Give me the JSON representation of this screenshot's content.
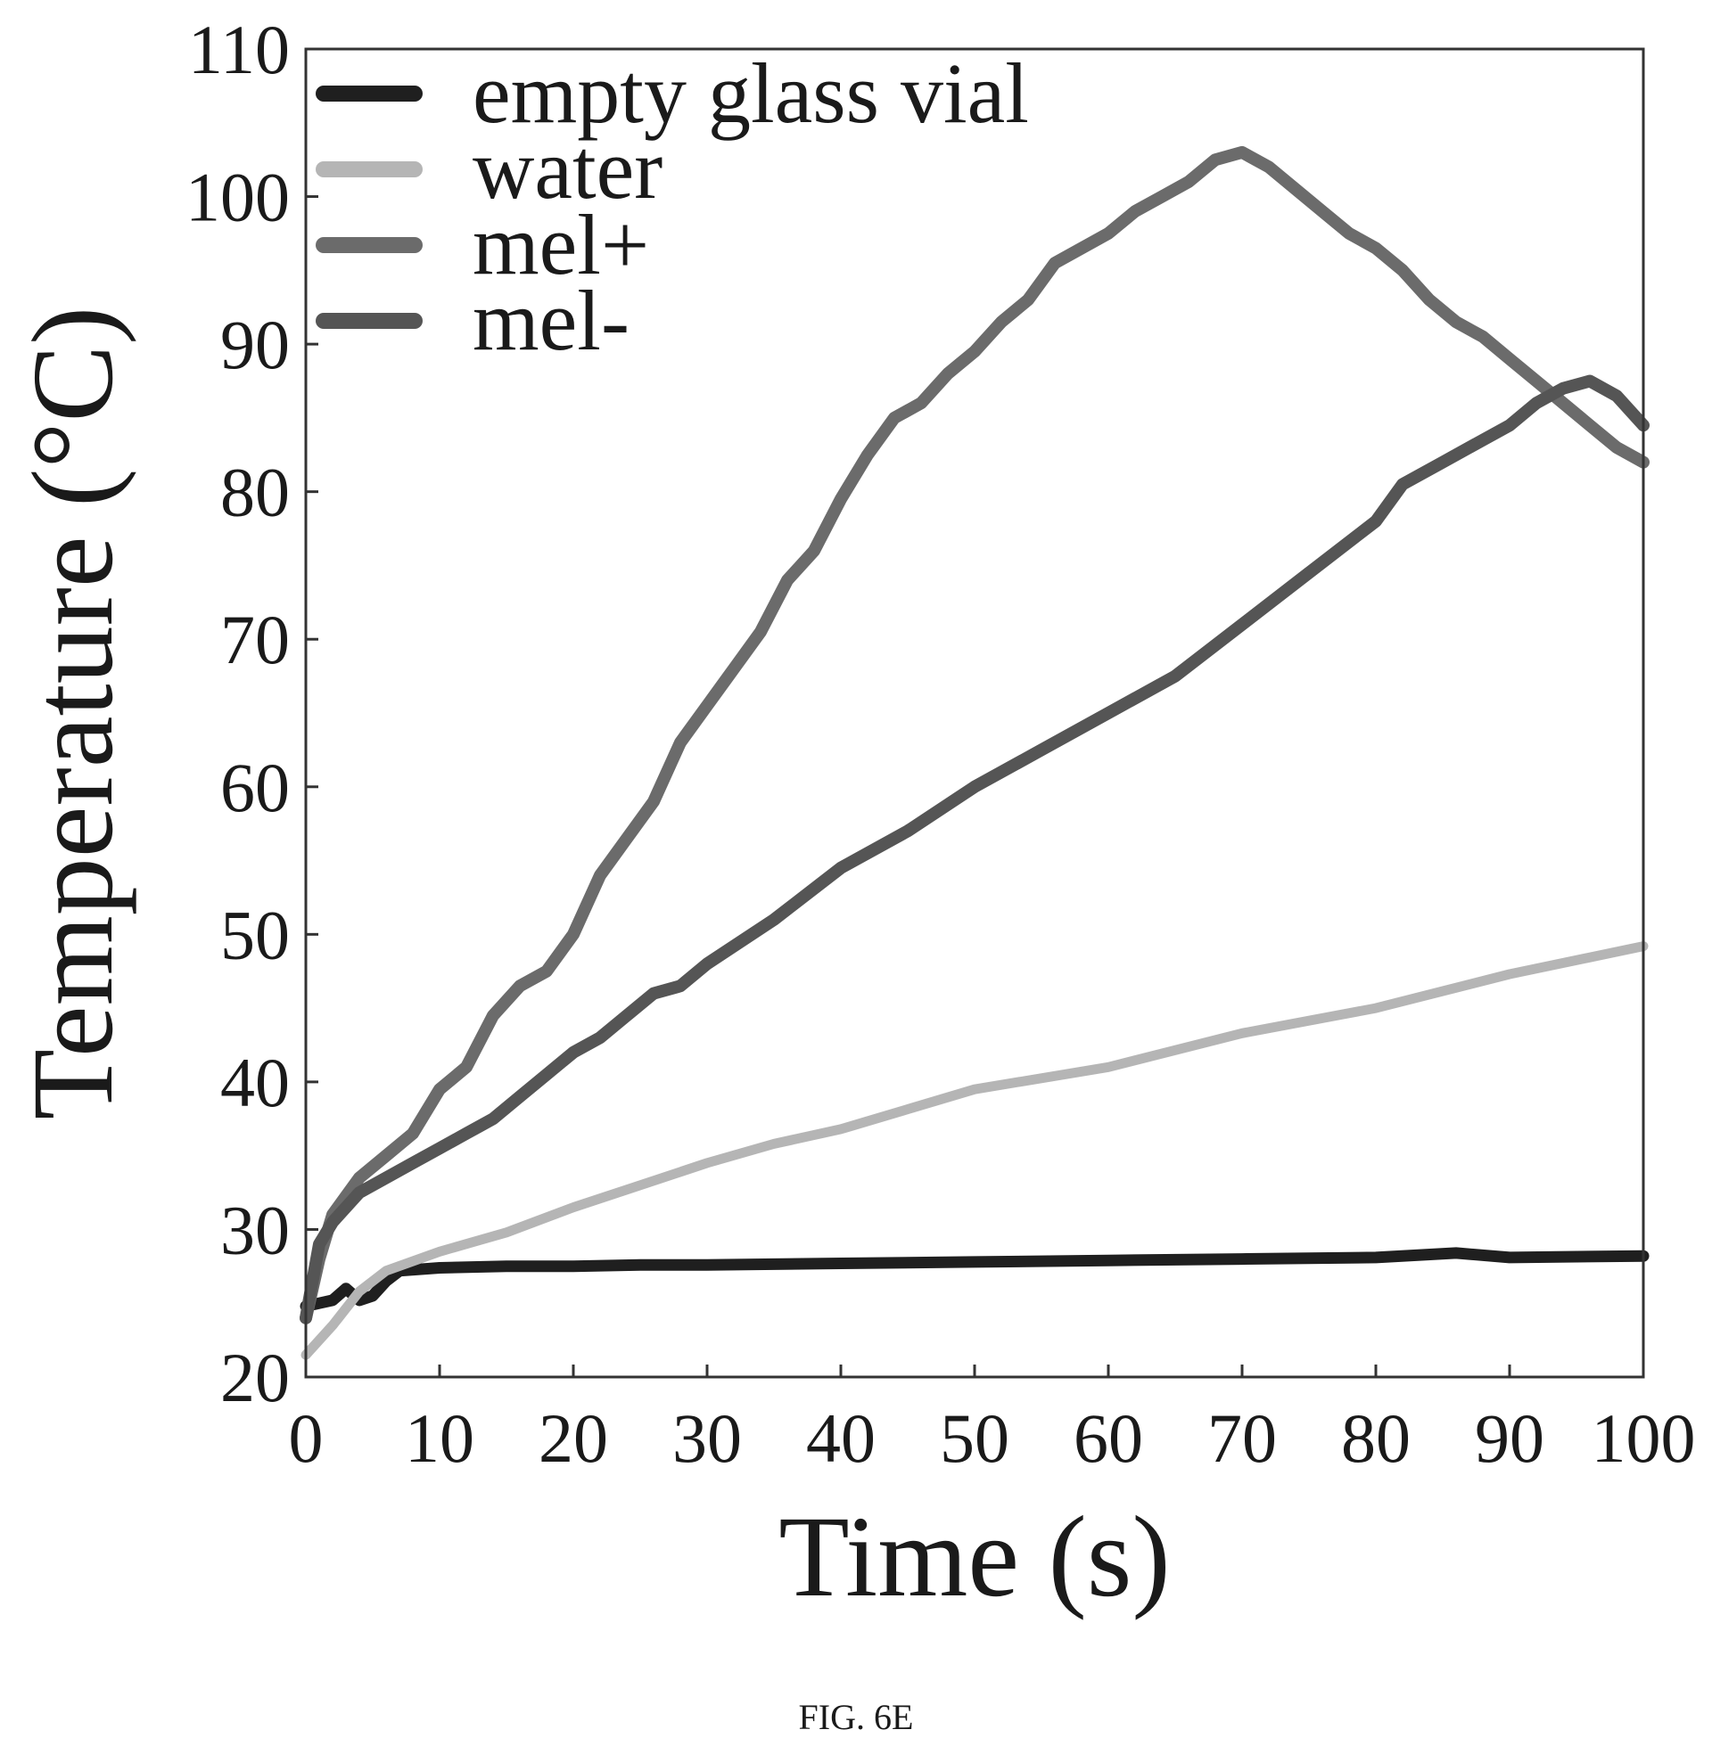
{
  "chart_data": {
    "type": "line",
    "xlabel": "Time (s)",
    "ylabel": "Temperature (°C)",
    "xlim": [
      0,
      100
    ],
    "ylim": [
      20,
      110
    ],
    "xticks": [
      0,
      10,
      20,
      30,
      40,
      50,
      60,
      70,
      80,
      90,
      100
    ],
    "yticks": [
      20,
      30,
      40,
      50,
      60,
      70,
      80,
      90,
      100,
      110
    ],
    "grid": false,
    "legend_position": "top-left",
    "series": [
      {
        "name": "empty glass vial",
        "color": "#1f1f1f",
        "x": [
          0,
          1,
          2,
          3,
          4,
          5,
          6,
          7,
          10,
          15,
          20,
          25,
          30,
          40,
          50,
          60,
          70,
          80,
          86,
          90,
          100
        ],
        "y": [
          24.8,
          25.0,
          25.2,
          26.0,
          25.2,
          25.5,
          26.5,
          27.2,
          27.4,
          27.5,
          27.5,
          27.6,
          27.6,
          27.7,
          27.8,
          27.9,
          28.0,
          28.1,
          28.4,
          28.1,
          28.2
        ]
      },
      {
        "name": "water",
        "color": "#b5b5b5",
        "x": [
          0,
          2,
          4,
          6,
          10,
          15,
          20,
          25,
          30,
          35,
          40,
          50,
          60,
          70,
          80,
          90,
          100
        ],
        "y": [
          21.5,
          23.5,
          25.8,
          27.2,
          28.5,
          29.8,
          31.5,
          33.0,
          34.5,
          35.8,
          36.8,
          39.5,
          41.0,
          43.3,
          45.0,
          47.3,
          49.2
        ]
      },
      {
        "name": "mel+",
        "color": "#6b6b6b",
        "x": [
          0,
          1,
          2,
          4,
          6,
          8,
          10,
          12,
          14,
          16,
          18,
          20,
          22,
          24,
          26,
          28,
          30,
          32,
          34,
          36,
          38,
          40,
          42,
          44,
          46,
          48,
          50,
          52,
          54,
          56,
          58,
          60,
          62,
          64,
          66,
          68,
          70,
          72,
          74,
          76,
          78,
          80,
          82,
          84,
          86,
          88,
          90,
          92,
          94,
          96,
          98,
          100
        ],
        "y": [
          24,
          28,
          31,
          33.5,
          35,
          36.5,
          39.5,
          41,
          44.5,
          46.5,
          47.5,
          50,
          54,
          56.5,
          59,
          63,
          65.5,
          68,
          70.5,
          74,
          76,
          79.5,
          82.5,
          85,
          86,
          88,
          89.5,
          91.5,
          93,
          95.5,
          96.5,
          97.5,
          99,
          100,
          101,
          102.5,
          103,
          102,
          100.5,
          99,
          97.5,
          96.5,
          95,
          93,
          91.5,
          90.5,
          89,
          87.5,
          86,
          84.5,
          83,
          82
        ]
      },
      {
        "name": "mel-",
        "color": "#555555",
        "x": [
          0,
          1,
          2,
          4,
          6,
          8,
          10,
          12,
          14,
          16,
          18,
          20,
          22,
          24,
          26,
          28,
          30,
          35,
          40,
          45,
          50,
          55,
          60,
          65,
          70,
          75,
          80,
          82,
          85,
          88,
          90,
          92,
          94,
          96,
          98,
          100
        ],
        "y": [
          24,
          29,
          30.5,
          32.5,
          33.5,
          34.5,
          35.5,
          36.5,
          37.5,
          39,
          40.5,
          42,
          43,
          44.5,
          46,
          46.5,
          48,
          51,
          54.5,
          57,
          60,
          62.5,
          65,
          67.5,
          71,
          74.5,
          78,
          80.5,
          82,
          83.5,
          84.5,
          86,
          87,
          87.5,
          86.5,
          84.5
        ]
      }
    ]
  },
  "caption": "FIG. 6E"
}
